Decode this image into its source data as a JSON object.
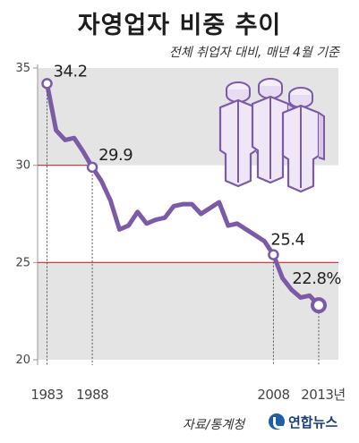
{
  "header": {
    "title": "자영업자 비중 추이",
    "subtitle": "전체 취업자 대비, 매년 4월 기준"
  },
  "footer": {
    "source": "자료/통계청",
    "agency": "연합뉴스"
  },
  "colors": {
    "line": "#7b5ba6",
    "band": "#e4e4e4",
    "refline": "#c0292f",
    "tick": "#444444",
    "illustration": "#7b5ba6"
  },
  "chart_data": {
    "type": "line",
    "title": "자영업자 비중 추이",
    "subtitle": "전체 취업자 대비, 매년 4월 기준",
    "xlabel": "",
    "ylabel": "",
    "ylim": [
      20,
      35
    ],
    "xlim": [
      1983,
      2013
    ],
    "yticks": [
      "20",
      "25",
      "30",
      "35"
    ],
    "xticks": [
      "1983",
      "1988",
      "2008",
      "2013년"
    ],
    "grid": "alternating horizontal bands",
    "x": [
      1983,
      1984,
      1985,
      1986,
      1987,
      1988,
      1989,
      1990,
      1991,
      1992,
      1993,
      1994,
      1995,
      1996,
      1997,
      1998,
      1999,
      2000,
      2001,
      2002,
      2003,
      2004,
      2005,
      2006,
      2007,
      2008,
      2009,
      2010,
      2011,
      2012,
      2013
    ],
    "values": [
      34.2,
      31.8,
      31.3,
      31.4,
      30.7,
      29.9,
      29.2,
      28.2,
      26.7,
      26.9,
      27.6,
      27.0,
      27.2,
      27.3,
      27.9,
      28.0,
      28.0,
      27.5,
      27.8,
      28.1,
      26.9,
      27.0,
      26.7,
      26.4,
      26.1,
      25.4,
      24.2,
      23.6,
      23.2,
      23.3,
      22.8
    ],
    "annotations": [
      {
        "x": 1983,
        "y": 34.2,
        "label": "34.2"
      },
      {
        "x": 1988,
        "y": 29.9,
        "label": "29.9"
      },
      {
        "x": 2008,
        "y": 25.4,
        "label": "25.4"
      },
      {
        "x": 2013,
        "y": 22.8,
        "label": "22.8%"
      }
    ]
  }
}
